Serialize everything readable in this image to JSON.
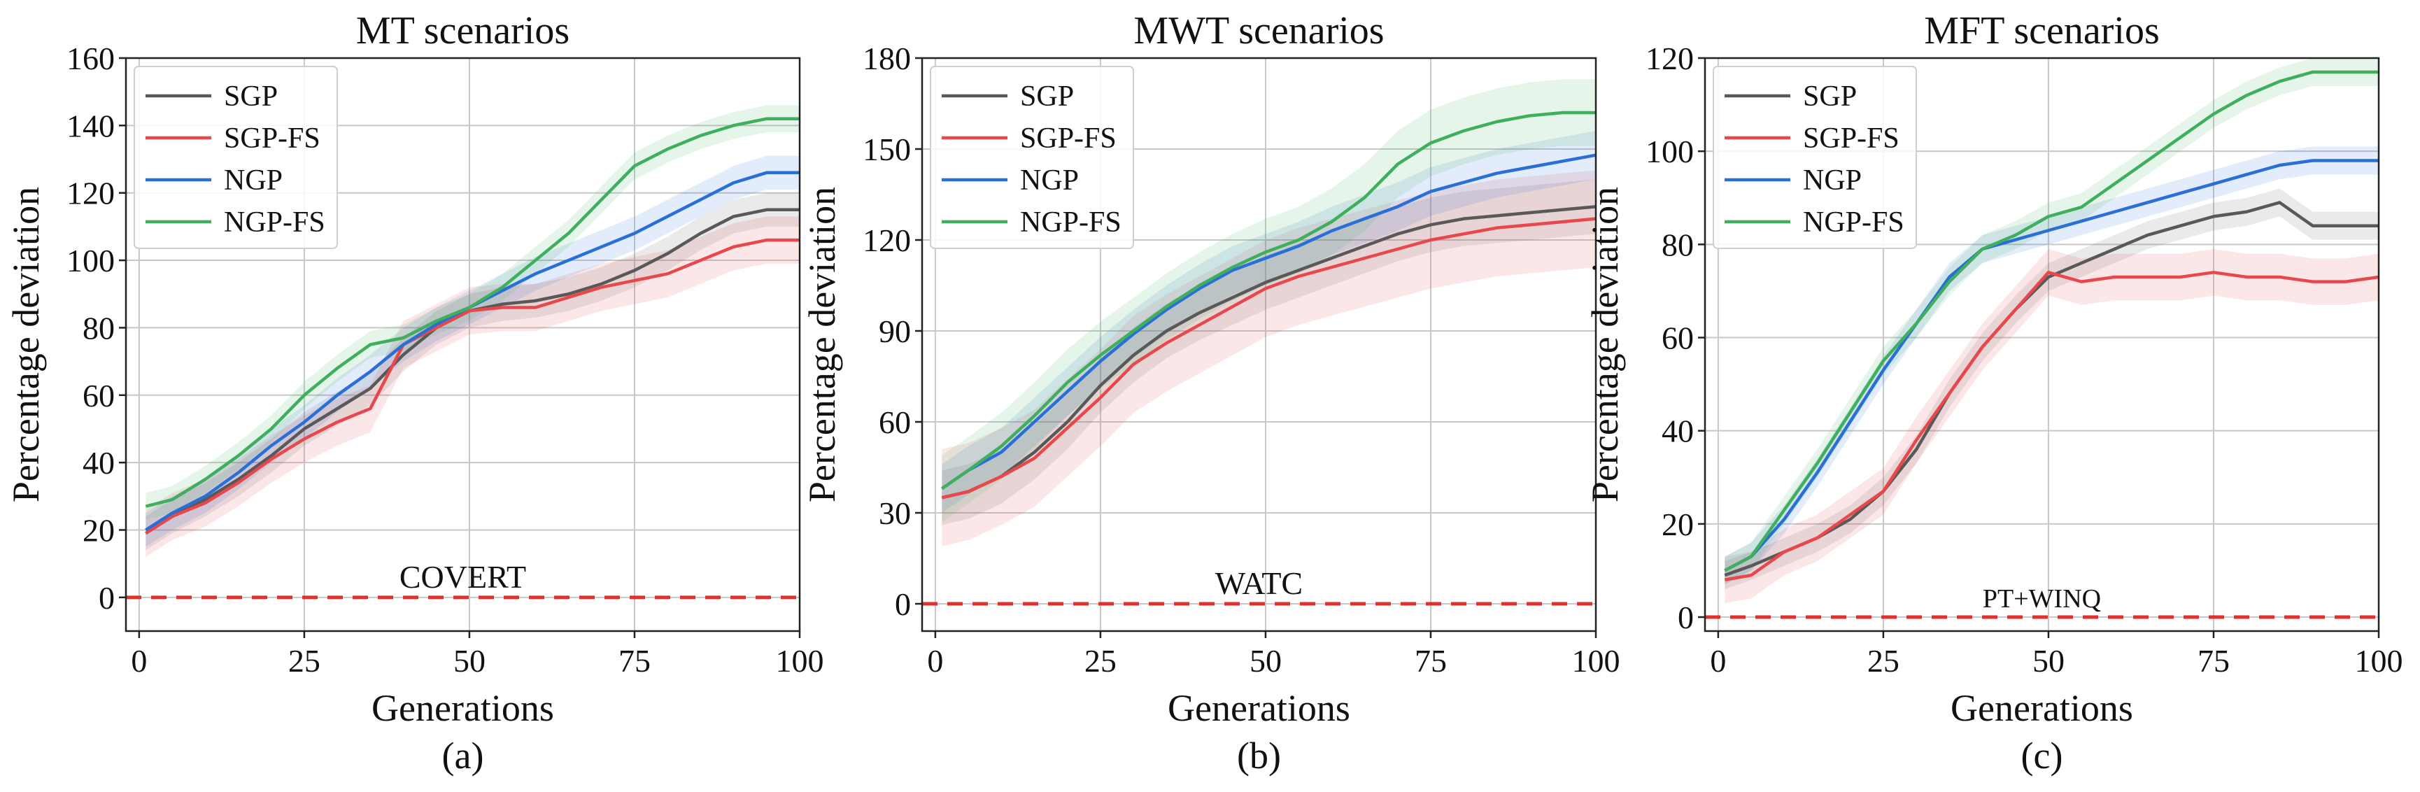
{
  "colors": {
    "SGP": "#595959",
    "SGP-FS": "#e8474b",
    "NGP": "#2a6fd6",
    "NGP-FS": "#3fae5d",
    "baseline": "#e0312f"
  },
  "chart_data": [
    {
      "type": "line",
      "title": "MT scenarios",
      "caption": "(a)",
      "xlabel": "Generations",
      "ylabel": "Percentage deviation",
      "xlim": [
        -2,
        100
      ],
      "ylim": [
        -10,
        160
      ],
      "xticks": [
        0,
        25,
        50,
        75,
        100
      ],
      "yticks": [
        0,
        20,
        40,
        60,
        80,
        100,
        120,
        140,
        160
      ],
      "grid": true,
      "legend": "top-left",
      "baseline": {
        "y": 0,
        "label": "COVERT"
      },
      "x": [
        1,
        5,
        10,
        15,
        20,
        25,
        30,
        35,
        40,
        45,
        50,
        55,
        60,
        65,
        70,
        75,
        80,
        85,
        90,
        95,
        100
      ],
      "series": [
        {
          "name": "SGP",
          "values": [
            19,
            24,
            29,
            35,
            42,
            50,
            56,
            62,
            72,
            80,
            85,
            87,
            88,
            90,
            93,
            97,
            102,
            108,
            113,
            115,
            115
          ],
          "band": 5
        },
        {
          "name": "SGP-FS",
          "values": [
            19,
            24,
            28,
            34,
            41,
            47,
            52,
            56,
            75,
            80,
            85,
            86,
            86,
            89,
            92,
            94,
            96,
            100,
            104,
            106,
            106
          ],
          "band": 7
        },
        {
          "name": "NGP",
          "values": [
            20,
            25,
            30,
            37,
            45,
            52,
            60,
            67,
            75,
            81,
            86,
            91,
            96,
            100,
            104,
            108,
            113,
            118,
            123,
            126,
            126
          ],
          "band": 5
        },
        {
          "name": "NGP-FS",
          "values": [
            27,
            29,
            35,
            42,
            50,
            60,
            68,
            75,
            77,
            82,
            86,
            92,
            100,
            108,
            118,
            128,
            133,
            137,
            140,
            142,
            142
          ],
          "band": 4
        }
      ]
    },
    {
      "type": "line",
      "title": "MWT scenarios",
      "caption": "(b)",
      "xlabel": "Generations",
      "ylabel": "Percentage deviation",
      "xlim": [
        -2,
        100
      ],
      "ylim": [
        -9,
        180
      ],
      "xticks": [
        0,
        25,
        50,
        75,
        100
      ],
      "yticks": [
        0,
        30,
        60,
        90,
        120,
        150,
        180
      ],
      "grid": true,
      "legend": "top-left",
      "baseline": {
        "y": 0,
        "label": "WATC"
      },
      "x": [
        1,
        5,
        10,
        15,
        20,
        25,
        30,
        35,
        40,
        45,
        50,
        55,
        60,
        65,
        70,
        75,
        80,
        85,
        90,
        95,
        100
      ],
      "series": [
        {
          "name": "SGP",
          "values": [
            35,
            37,
            42,
            50,
            60,
            72,
            82,
            90,
            96,
            101,
            106,
            110,
            114,
            118,
            122,
            125,
            127,
            128,
            129,
            130,
            131
          ],
          "band": 9
        },
        {
          "name": "SGP-FS",
          "values": [
            35,
            37,
            42,
            48,
            58,
            68,
            79,
            86,
            92,
            98,
            104,
            108,
            111,
            114,
            117,
            120,
            122,
            124,
            125,
            126,
            127
          ],
          "band": 16
        },
        {
          "name": "NGP",
          "values": [
            38,
            44,
            50,
            60,
            70,
            80,
            89,
            97,
            104,
            110,
            114,
            118,
            123,
            127,
            131,
            136,
            139,
            142,
            144,
            146,
            148
          ],
          "band": 8
        },
        {
          "name": "NGP-FS",
          "values": [
            38,
            44,
            52,
            62,
            73,
            82,
            90,
            98,
            105,
            111,
            116,
            120,
            126,
            134,
            145,
            152,
            156,
            159,
            161,
            162,
            162
          ],
          "band": 11
        }
      ]
    },
    {
      "type": "line",
      "title": "MFT scenarios",
      "caption": "(c)",
      "xlabel": "Generations",
      "ylabel": "Percentage deviation",
      "xlim": [
        -2,
        100
      ],
      "ylim": [
        -3,
        120
      ],
      "xticks": [
        0,
        25,
        50,
        75,
        100
      ],
      "yticks": [
        0,
        20,
        40,
        60,
        80,
        100,
        120
      ],
      "grid": true,
      "legend": "top-left",
      "baseline": {
        "y": 0,
        "label": "PT+WINQ"
      },
      "x": [
        1,
        5,
        10,
        15,
        20,
        25,
        30,
        35,
        40,
        45,
        50,
        55,
        60,
        65,
        70,
        75,
        80,
        85,
        90,
        95,
        100
      ],
      "series": [
        {
          "name": "SGP",
          "values": [
            9,
            11,
            14,
            17,
            21,
            27,
            36,
            48,
            58,
            66,
            73,
            76,
            79,
            82,
            84,
            86,
            87,
            89,
            84,
            84,
            84
          ],
          "band": 3
        },
        {
          "name": "SGP-FS",
          "values": [
            8,
            9,
            14,
            17,
            22,
            27,
            38,
            48,
            58,
            66,
            74,
            72,
            73,
            73,
            73,
            74,
            73,
            73,
            72,
            72,
            73
          ],
          "band": 5
        },
        {
          "name": "NGP",
          "values": [
            10,
            13,
            21,
            31,
            42,
            53,
            63,
            73,
            79,
            81,
            83,
            85,
            87,
            89,
            91,
            93,
            95,
            97,
            98,
            98,
            98
          ],
          "band": 3
        },
        {
          "name": "NGP-FS",
          "values": [
            10,
            13,
            23,
            33,
            44,
            55,
            63,
            72,
            79,
            82,
            86,
            88,
            93,
            98,
            103,
            108,
            112,
            115,
            117,
            117,
            117
          ],
          "band": 3
        }
      ]
    }
  ]
}
